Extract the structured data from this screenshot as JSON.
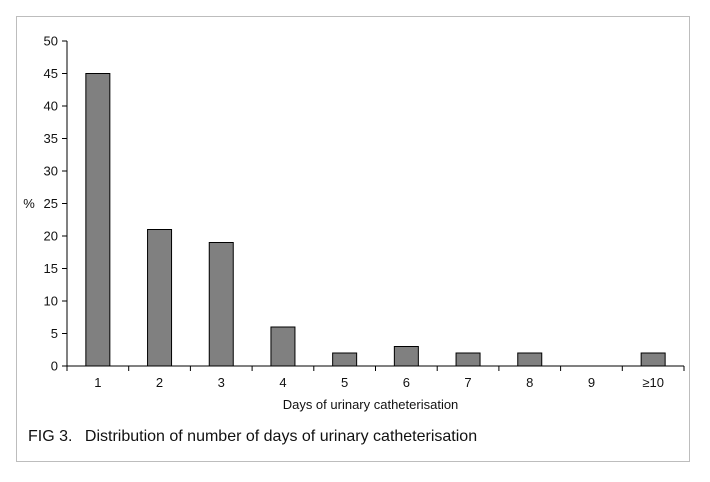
{
  "chart_data": {
    "type": "bar",
    "categories": [
      "1",
      "2",
      "3",
      "4",
      "5",
      "6",
      "7",
      "8",
      "9",
      "≥10"
    ],
    "values": [
      45,
      21,
      19,
      6,
      2,
      3,
      2,
      2,
      0,
      2
    ],
    "xlabel": "Days of urinary catheterisation",
    "ylabel": "%",
    "ylim": [
      0,
      50
    ],
    "yticks": [
      0,
      5,
      10,
      15,
      20,
      25,
      30,
      35,
      40,
      45,
      50
    ],
    "grid": false,
    "legend": "none",
    "bar_color": "#808080",
    "bar_edge_color": "#000000"
  },
  "caption": {
    "label": "FIG 3.",
    "text": "Distribution of number of days of urinary catheterisation"
  }
}
